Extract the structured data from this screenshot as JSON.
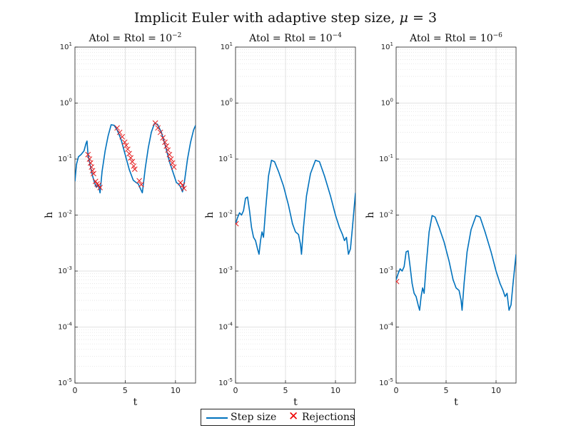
{
  "figure": {
    "title_prefix": "Implicit Euler with adaptive step size, ",
    "title_mu": "μ",
    "title_suffix": " = 3"
  },
  "legend": {
    "entries": [
      "Step size",
      "Rejections"
    ]
  },
  "colors": {
    "step_size": "#0072BD",
    "rejections": "#e41a1c",
    "grid": "#d9d9d9",
    "axes": "#262626"
  },
  "chart_data": [
    {
      "type": "line",
      "title": "Atol = Rtol = 10^-2",
      "title_base": "Atol = Rtol = 10",
      "title_exp": "−2",
      "xlabel": "t",
      "ylabel": "h",
      "xlim": [
        0,
        12
      ],
      "ylim": [
        1e-05,
        10
      ],
      "yscale": "log",
      "grid": true,
      "xticks": [
        0,
        5,
        10
      ],
      "yticks": [
        -5,
        -4,
        -3,
        -2,
        -1,
        0,
        1
      ],
      "series": [
        {
          "name": "Step size",
          "x": [
            0,
            0.15,
            0.35,
            0.6,
            0.9,
            1.1,
            1.2,
            1.3,
            1.5,
            1.7,
            1.9,
            2.1,
            2.3,
            2.4,
            2.5,
            2.7,
            3.0,
            3.3,
            3.6,
            3.9,
            4.2,
            4.6,
            5.0,
            5.4,
            5.8,
            6.1,
            6.3,
            6.5,
            6.7,
            7.0,
            7.3,
            7.6,
            7.9,
            8.2,
            8.6,
            9.0,
            9.4,
            9.8,
            10.1,
            10.3,
            10.5,
            10.7,
            10.9,
            11.2,
            11.5,
            11.8,
            12.0
          ],
          "y": [
            0.04,
            0.08,
            0.11,
            0.12,
            0.14,
            0.19,
            0.21,
            0.12,
            0.08,
            0.055,
            0.04,
            0.032,
            0.035,
            0.03,
            0.025,
            0.06,
            0.14,
            0.26,
            0.41,
            0.4,
            0.33,
            0.22,
            0.12,
            0.065,
            0.042,
            0.038,
            0.036,
            0.03,
            0.025,
            0.07,
            0.16,
            0.3,
            0.43,
            0.42,
            0.3,
            0.17,
            0.09,
            0.055,
            0.038,
            0.036,
            0.032,
            0.026,
            0.04,
            0.1,
            0.2,
            0.33,
            0.4
          ]
        },
        {
          "name": "Rejections",
          "x": [
            1.3,
            1.45,
            1.55,
            1.65,
            1.75,
            1.85,
            2.05,
            2.2,
            2.35,
            2.5,
            4.2,
            4.45,
            4.7,
            4.95,
            5.1,
            5.25,
            5.4,
            5.55,
            5.7,
            5.85,
            5.95,
            6.4,
            6.6,
            8.0,
            8.25,
            8.5,
            8.75,
            8.95,
            9.1,
            9.25,
            9.4,
            9.55,
            9.7,
            9.85,
            10.5,
            10.7,
            10.85
          ],
          "y": [
            0.12,
            0.1,
            0.085,
            0.072,
            0.062,
            0.055,
            0.04,
            0.036,
            0.034,
            0.031,
            0.36,
            0.3,
            0.25,
            0.2,
            0.175,
            0.15,
            0.125,
            0.105,
            0.09,
            0.075,
            0.066,
            0.041,
            0.035,
            0.44,
            0.36,
            0.3,
            0.24,
            0.2,
            0.17,
            0.145,
            0.12,
            0.1,
            0.085,
            0.072,
            0.038,
            0.034,
            0.03
          ]
        }
      ]
    },
    {
      "type": "line",
      "title": "Atol = Rtol = 10^-4",
      "title_base": "Atol = Rtol = 10",
      "title_exp": "−4",
      "xlabel": "t",
      "ylabel": "h",
      "xlim": [
        0,
        12
      ],
      "ylim": [
        1e-05,
        10
      ],
      "yscale": "log",
      "grid": true,
      "xticks": [
        0,
        5,
        10
      ],
      "yticks": [
        -5,
        -4,
        -3,
        -2,
        -1,
        0,
        1
      ],
      "series": [
        {
          "name": "Step size",
          "x": [
            0,
            0.2,
            0.4,
            0.6,
            0.8,
            1.0,
            1.2,
            1.4,
            1.6,
            1.8,
            2.0,
            2.2,
            2.35,
            2.5,
            2.65,
            2.8,
            3.0,
            3.3,
            3.6,
            3.9,
            4.3,
            4.8,
            5.3,
            5.7,
            6.0,
            6.3,
            6.5,
            6.6,
            6.8,
            7.1,
            7.5,
            8.0,
            8.4,
            8.9,
            9.5,
            10.0,
            10.4,
            10.7,
            10.9,
            11.1,
            11.3,
            11.5,
            11.7,
            12.0
          ],
          "y": [
            0.007,
            0.009,
            0.011,
            0.01,
            0.012,
            0.02,
            0.021,
            0.012,
            0.006,
            0.004,
            0.0035,
            0.0025,
            0.002,
            0.0035,
            0.005,
            0.004,
            0.012,
            0.05,
            0.095,
            0.09,
            0.06,
            0.033,
            0.015,
            0.007,
            0.005,
            0.0045,
            0.003,
            0.002,
            0.006,
            0.022,
            0.055,
            0.095,
            0.09,
            0.05,
            0.022,
            0.01,
            0.006,
            0.0045,
            0.0035,
            0.004,
            0.002,
            0.0025,
            0.006,
            0.025
          ]
        },
        {
          "name": "Rejections",
          "x": [
            0.05
          ],
          "y": [
            0.007
          ]
        }
      ]
    },
    {
      "type": "line",
      "title": "Atol = Rtol = 10^-6",
      "title_base": "Atol = Rtol = 10",
      "title_exp": "−6",
      "xlabel": "t",
      "ylabel": "h",
      "xlim": [
        0,
        12
      ],
      "ylim": [
        1e-05,
        10
      ],
      "yscale": "log",
      "grid": true,
      "xticks": [
        0,
        5,
        10
      ],
      "yticks": [
        -5,
        -4,
        -3,
        -2,
        -1,
        0,
        1
      ],
      "series": [
        {
          "name": "Step size",
          "x": [
            0,
            0.2,
            0.4,
            0.6,
            0.8,
            1.0,
            1.2,
            1.4,
            1.6,
            1.8,
            2.0,
            2.2,
            2.35,
            2.5,
            2.65,
            2.8,
            3.0,
            3.3,
            3.6,
            3.9,
            4.3,
            4.8,
            5.3,
            5.7,
            6.0,
            6.3,
            6.5,
            6.6,
            6.8,
            7.1,
            7.5,
            8.0,
            8.4,
            8.9,
            9.5,
            10.0,
            10.4,
            10.7,
            10.9,
            11.1,
            11.3,
            11.5,
            11.7,
            12.0
          ],
          "y": [
            0.0007,
            0.0009,
            0.0011,
            0.001,
            0.0012,
            0.0022,
            0.0023,
            0.0012,
            0.0006,
            0.0004,
            0.00035,
            0.00025,
            0.0002,
            0.00035,
            0.0005,
            0.0004,
            0.0012,
            0.005,
            0.0098,
            0.0092,
            0.006,
            0.0033,
            0.0015,
            0.0007,
            0.0005,
            0.00045,
            0.0003,
            0.0002,
            0.0006,
            0.0022,
            0.0055,
            0.0098,
            0.0092,
            0.005,
            0.0022,
            0.001,
            0.0006,
            0.00045,
            0.00035,
            0.0004,
            0.0002,
            0.00025,
            0.0006,
            0.002
          ]
        },
        {
          "name": "Rejections",
          "x": [
            0.05
          ],
          "y": [
            0.00065
          ]
        }
      ]
    }
  ]
}
